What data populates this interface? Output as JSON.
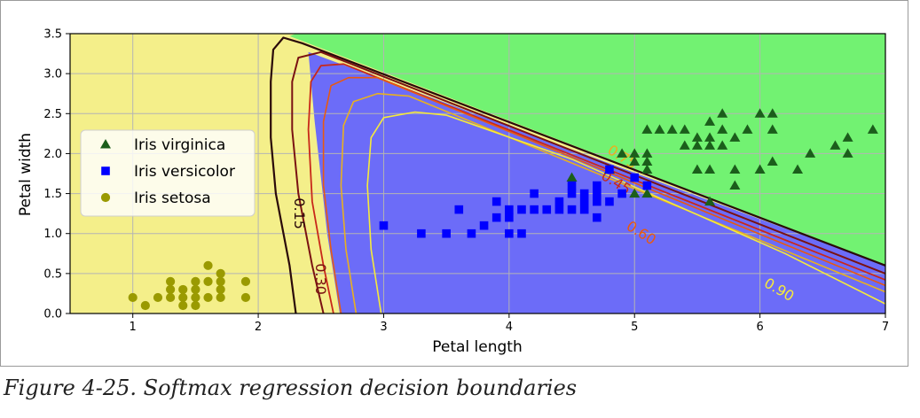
{
  "chart_data": {
    "type": "scatter",
    "title": "",
    "xlabel": "Petal length",
    "ylabel": "Petal width",
    "xlim": [
      0.5,
      7
    ],
    "ylim": [
      0,
      3.5
    ],
    "xticks": [
      1,
      2,
      3,
      4,
      5,
      6,
      7
    ],
    "xtick_labels": [
      "1",
      "2",
      "3",
      "4",
      "5",
      "6",
      "7"
    ],
    "yticks": [
      0.0,
      0.5,
      1.0,
      1.5,
      2.0,
      2.5,
      3.0,
      3.5
    ],
    "ytick_labels": [
      "0.0",
      "0.5",
      "1.0",
      "1.5",
      "2.0",
      "2.5",
      "3.0",
      "3.5"
    ],
    "grid": true,
    "legend_position": "center-left",
    "regions": [
      {
        "name": "Iris setosa region",
        "color": "#f4ef8a"
      },
      {
        "name": "Iris versicolor region",
        "color": "#6c6cf8"
      },
      {
        "name": "Iris virginica region",
        "color": "#72f272"
      }
    ],
    "series": [
      {
        "name": "Iris virginica",
        "marker": "triangle",
        "color": "#1b5e1b",
        "points": [
          [
            4.5,
            1.7
          ],
          [
            4.8,
            1.8
          ],
          [
            4.9,
            2.0
          ],
          [
            5.0,
            2.0
          ],
          [
            5.0,
            1.5
          ],
          [
            5.0,
            1.9
          ],
          [
            5.1,
            2.0
          ],
          [
            5.1,
            1.9
          ],
          [
            5.1,
            1.8
          ],
          [
            5.1,
            2.3
          ],
          [
            5.1,
            1.5
          ],
          [
            5.2,
            2.3
          ],
          [
            5.3,
            2.3
          ],
          [
            5.4,
            2.3
          ],
          [
            5.4,
            2.1
          ],
          [
            5.5,
            2.1
          ],
          [
            5.5,
            1.8
          ],
          [
            5.5,
            2.2
          ],
          [
            5.6,
            2.4
          ],
          [
            5.6,
            2.2
          ],
          [
            5.6,
            2.1
          ],
          [
            5.6,
            1.8
          ],
          [
            5.6,
            1.4
          ],
          [
            5.7,
            2.5
          ],
          [
            5.7,
            2.3
          ],
          [
            5.7,
            2.1
          ],
          [
            5.8,
            2.2
          ],
          [
            5.8,
            1.8
          ],
          [
            5.8,
            1.6
          ],
          [
            5.9,
            2.3
          ],
          [
            6.0,
            2.5
          ],
          [
            6.0,
            1.8
          ],
          [
            6.1,
            2.5
          ],
          [
            6.1,
            2.3
          ],
          [
            6.1,
            1.9
          ],
          [
            6.3,
            1.8
          ],
          [
            6.4,
            2.0
          ],
          [
            6.6,
            2.1
          ],
          [
            6.7,
            2.2
          ],
          [
            6.7,
            2.0
          ],
          [
            6.9,
            2.3
          ]
        ]
      },
      {
        "name": "Iris versicolor",
        "marker": "square",
        "color": "#0000ff",
        "points": [
          [
            3.0,
            1.1
          ],
          [
            3.3,
            1.0
          ],
          [
            3.5,
            1.0
          ],
          [
            3.6,
            1.3
          ],
          [
            3.7,
            1.0
          ],
          [
            3.8,
            1.1
          ],
          [
            3.9,
            1.4
          ],
          [
            3.9,
            1.2
          ],
          [
            4.0,
            1.3
          ],
          [
            4.0,
            1.0
          ],
          [
            4.0,
            1.2
          ],
          [
            4.1,
            1.0
          ],
          [
            4.1,
            1.3
          ],
          [
            4.2,
            1.5
          ],
          [
            4.2,
            1.3
          ],
          [
            4.3,
            1.3
          ],
          [
            4.4,
            1.4
          ],
          [
            4.4,
            1.3
          ],
          [
            4.5,
            1.6
          ],
          [
            4.5,
            1.5
          ],
          [
            4.5,
            1.3
          ],
          [
            4.6,
            1.4
          ],
          [
            4.6,
            1.3
          ],
          [
            4.6,
            1.5
          ],
          [
            4.7,
            1.6
          ],
          [
            4.7,
            1.4
          ],
          [
            4.7,
            1.2
          ],
          [
            4.7,
            1.5
          ],
          [
            4.8,
            1.8
          ],
          [
            4.8,
            1.4
          ],
          [
            4.9,
            1.5
          ],
          [
            5.0,
            1.7
          ],
          [
            5.1,
            1.6
          ]
        ]
      },
      {
        "name": "Iris setosa",
        "marker": "circle",
        "color": "#9a9a00",
        "points": [
          [
            1.0,
            0.2
          ],
          [
            1.1,
            0.1
          ],
          [
            1.2,
            0.2
          ],
          [
            1.3,
            0.2
          ],
          [
            1.3,
            0.3
          ],
          [
            1.3,
            0.4
          ],
          [
            1.4,
            0.1
          ],
          [
            1.4,
            0.2
          ],
          [
            1.4,
            0.3
          ],
          [
            1.5,
            0.1
          ],
          [
            1.5,
            0.2
          ],
          [
            1.5,
            0.3
          ],
          [
            1.5,
            0.4
          ],
          [
            1.6,
            0.2
          ],
          [
            1.6,
            0.4
          ],
          [
            1.6,
            0.6
          ],
          [
            1.7,
            0.2
          ],
          [
            1.7,
            0.3
          ],
          [
            1.7,
            0.4
          ],
          [
            1.7,
            0.5
          ],
          [
            1.9,
            0.2
          ],
          [
            1.9,
            0.4
          ]
        ]
      }
    ],
    "contour_labels": [
      "0.15",
      "0.30",
      "0.45",
      "0.60",
      "0.75",
      "0.90"
    ],
    "contour_label_positions": [
      [
        2.32,
        1.25
      ],
      [
        2.49,
        0.43
      ],
      [
        4.85,
        1.63
      ],
      [
        5.05,
        1.0
      ],
      [
        4.9,
        1.95
      ],
      [
        6.15,
        0.29
      ]
    ],
    "legend_entries": [
      "Iris virginica",
      "Iris versicolor",
      "Iris setosa"
    ]
  },
  "caption": "Figure 4-25. Softmax regression decision boundaries"
}
